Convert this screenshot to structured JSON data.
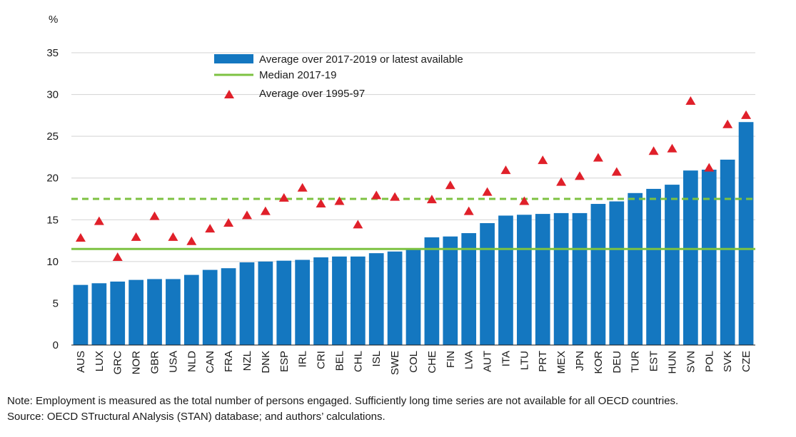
{
  "chart_data": {
    "type": "bar",
    "ylabel": "%",
    "ylim": [
      0,
      35
    ],
    "yticks": [
      0,
      5,
      10,
      15,
      20,
      25,
      30,
      35
    ],
    "grid": "horizontal",
    "legend_position": "top-center",
    "categories": [
      "AUS",
      "LUX",
      "GRC",
      "NOR",
      "GBR",
      "USA",
      "NLD",
      "CAN",
      "FRA",
      "NZL",
      "DNK",
      "ESP",
      "IRL",
      "CRI",
      "BEL",
      "CHL",
      "ISL",
      "SWE",
      "COL",
      "CHE",
      "FIN",
      "LVA",
      "AUT",
      "ITA",
      "LTU",
      "PRT",
      "MEX",
      "JPN",
      "KOR",
      "DEU",
      "TUR",
      "EST",
      "HUN",
      "SVN",
      "POL",
      "SVK",
      "CZE"
    ],
    "series": [
      {
        "name": "Average over 2017-2019 or latest available",
        "kind": "bar",
        "color": "#1477c0",
        "values": [
          7.2,
          7.4,
          7.6,
          7.8,
          7.9,
          7.9,
          8.4,
          9.0,
          9.2,
          9.9,
          10.0,
          10.1,
          10.2,
          10.5,
          10.6,
          10.6,
          11.0,
          11.2,
          11.5,
          12.9,
          13.0,
          13.4,
          14.6,
          15.5,
          15.6,
          15.7,
          15.8,
          15.8,
          16.9,
          17.2,
          18.2,
          18.7,
          19.2,
          20.9,
          21.0,
          22.2,
          26.7
        ]
      },
      {
        "name": "Median 2017-19",
        "kind": "hline",
        "color": "#7dc242",
        "value": 11.5
      },
      {
        "name": "Average over 1995-97",
        "kind": "marker",
        "color": "#e0202a",
        "values": [
          12.8,
          14.8,
          10.5,
          12.9,
          15.4,
          12.9,
          12.4,
          13.9,
          14.6,
          15.5,
          16.0,
          17.6,
          18.8,
          16.9,
          17.2,
          14.4,
          17.9,
          17.7,
          null,
          17.4,
          19.1,
          16.0,
          18.3,
          20.9,
          17.2,
          22.1,
          19.5,
          20.2,
          22.4,
          20.7,
          null,
          23.2,
          23.5,
          29.2,
          21.2,
          26.4,
          27.5
        ]
      },
      {
        "kind": "hline-dashed",
        "color": "#7dc242",
        "value": 17.5
      }
    ]
  },
  "notes": {
    "note": "Note: Employment is measured as the total number of persons engaged. Sufficiently long time series are not available for all OECD countries.",
    "source": "Source: OECD STructural ANalysis (STAN) database; and authors’ calculations."
  }
}
